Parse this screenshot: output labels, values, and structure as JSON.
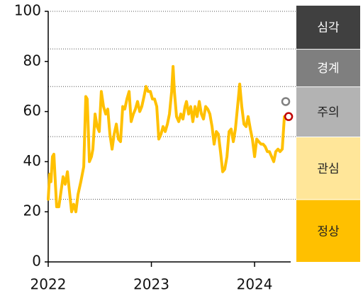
{
  "chart_data": {
    "type": "line",
    "x": [
      2022.0,
      2022.014,
      2022.027,
      2022.041,
      2022.055,
      2022.069,
      2022.082,
      2022.103,
      2022.124,
      2022.144,
      2022.165,
      2022.186,
      2022.206,
      2022.227,
      2022.247,
      2022.268,
      2022.289,
      2022.316,
      2022.344,
      2022.364,
      2022.378,
      2022.399,
      2022.419,
      2022.433,
      2022.454,
      2022.474,
      2022.495,
      2022.515,
      2022.536,
      2022.557,
      2022.577,
      2022.598,
      2022.619,
      2022.639,
      2022.66,
      2022.68,
      2022.701,
      2022.722,
      2022.742,
      2022.763,
      2022.784,
      2022.804,
      2022.825,
      2022.845,
      2022.866,
      2022.887,
      2022.907,
      2022.928,
      2022.948,
      2022.969,
      2022.99,
      2023.01,
      2023.031,
      2023.052,
      2023.072,
      2023.093,
      2023.113,
      2023.134,
      2023.155,
      2023.175,
      2023.196,
      2023.21,
      2023.223,
      2023.244,
      2023.265,
      2023.285,
      2023.306,
      2023.326,
      2023.34,
      2023.361,
      2023.381,
      2023.402,
      2023.423,
      2023.443,
      2023.464,
      2023.485,
      2023.505,
      2023.526,
      2023.546,
      2023.567,
      2023.588,
      2023.608,
      2023.629,
      2023.649,
      2023.67,
      2023.691,
      2023.711,
      2023.732,
      2023.753,
      2023.773,
      2023.794,
      2023.814,
      2023.835,
      2023.856,
      2023.876,
      2023.897,
      2023.918,
      2023.938,
      2023.959,
      2023.979,
      2024.0,
      2024.021,
      2024.041,
      2024.062,
      2024.082,
      2024.103,
      2024.124,
      2024.144,
      2024.165,
      2024.186,
      2024.206,
      2024.227,
      2024.247,
      2024.268,
      2024.289,
      2024.309
    ],
    "series": [
      {
        "color": "#ffc000",
        "values": [
          25,
          35,
          32,
          42,
          43,
          32,
          22,
          22,
          28,
          34,
          31,
          36,
          28,
          20,
          23,
          20,
          27,
          32,
          38,
          66,
          65,
          40,
          42,
          45,
          59,
          54,
          52,
          68,
          62,
          59,
          61,
          51,
          45,
          51,
          55,
          49,
          48,
          62,
          61,
          65,
          68,
          56,
          59,
          61,
          64,
          60,
          62,
          66,
          70,
          68,
          68,
          65,
          65,
          62,
          49,
          51,
          54,
          52,
          55,
          59,
          68,
          78,
          68,
          58,
          56,
          59,
          57,
          62,
          64,
          59,
          62,
          56,
          62,
          58,
          64,
          59,
          57,
          62,
          61,
          59,
          54,
          47,
          52,
          51,
          44,
          36,
          37,
          42,
          52,
          53,
          48,
          53,
          62,
          71,
          62,
          55,
          54,
          58,
          53,
          49,
          42,
          49,
          48,
          47,
          47,
          46,
          44,
          44,
          42,
          40,
          44,
          45,
          44,
          45,
          58,
          58
        ]
      }
    ],
    "points": [
      {
        "x": 2024.302,
        "value": 64,
        "color": "#808080"
      },
      {
        "x": 2024.33,
        "value": 58,
        "color": "#c00000"
      }
    ],
    "zones": [
      {
        "label": "심각",
        "from": 85,
        "to": 100,
        "color": "#404040",
        "text_color": "#ffffff"
      },
      {
        "label": "경계",
        "from": 70,
        "to": 85,
        "color": "#7f7f7f",
        "text_color": "#ffffff"
      },
      {
        "label": "주의",
        "from": 50,
        "to": 70,
        "color": "#b3b3b3",
        "text_color": "#222222"
      },
      {
        "label": "관심",
        "from": 25,
        "to": 50,
        "color": "#ffe699",
        "text_color": "#222222"
      },
      {
        "label": "정상",
        "from": 0,
        "to": 25,
        "color": "#ffc000",
        "text_color": "#222222"
      }
    ],
    "xlim": [
      2022,
      2024.35
    ],
    "xticks": [
      2022,
      2023,
      2024
    ],
    "ylim": [
      0,
      100
    ],
    "yticks": [
      0,
      20,
      40,
      60,
      80,
      100
    ]
  }
}
